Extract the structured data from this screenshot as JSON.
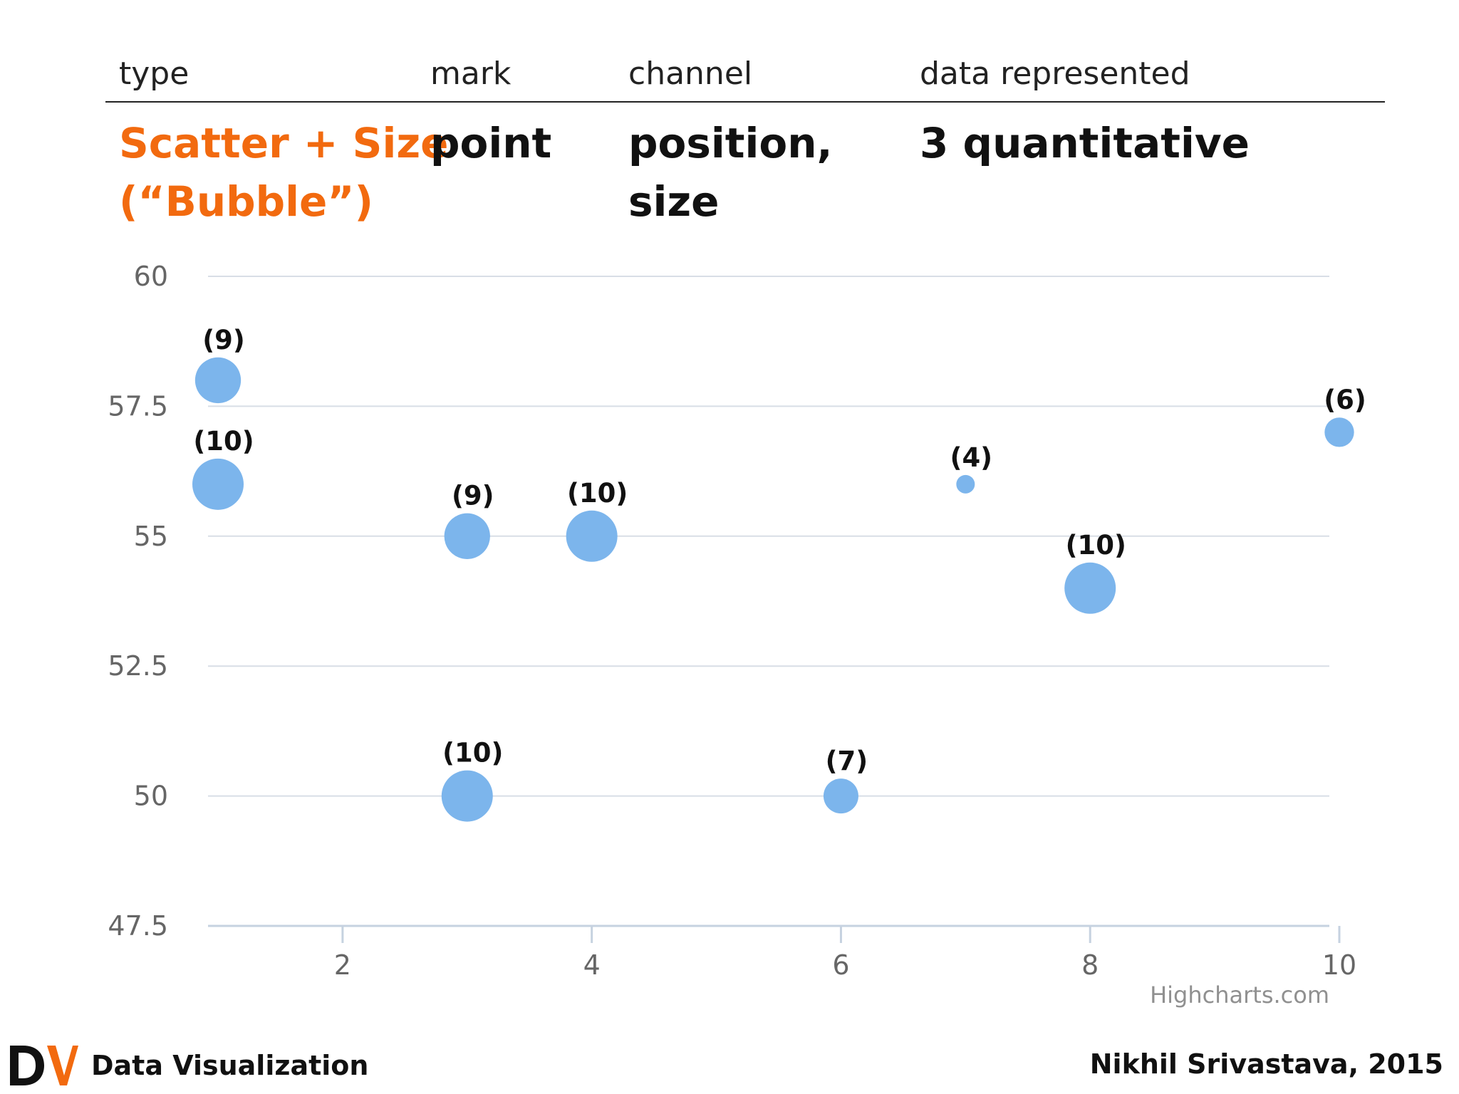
{
  "header": {
    "type_label": "type",
    "mark_label": "mark",
    "channel_label": "channel",
    "data_label": "data represented"
  },
  "row": {
    "type_line1": "Scatter + Size",
    "type_line2": "(“Bubble”)",
    "mark": "point",
    "channel_line1": "position,",
    "channel_line2": "size",
    "data": "3 quantitative"
  },
  "colors": {
    "accent": "#f26a0f",
    "bubble": "#7cb5ec",
    "grid": "#d8dee6",
    "axis_text": "#666666"
  },
  "chart_data": {
    "type": "scatter",
    "xlim": [
      1,
      10
    ],
    "ylim": [
      47.5,
      60
    ],
    "xticks": [
      2,
      4,
      6,
      8,
      10
    ],
    "yticks": [
      47.5,
      50,
      52.5,
      55,
      57.5,
      60
    ],
    "grid": true,
    "credit": "Highcharts.com",
    "series": [
      {
        "points": [
          {
            "x": 1,
            "y": 58,
            "z": 9,
            "label": "(9)"
          },
          {
            "x": 1,
            "y": 56,
            "z": 10,
            "label": "(10)"
          },
          {
            "x": 3,
            "y": 55,
            "z": 9,
            "label": "(9)"
          },
          {
            "x": 4,
            "y": 55,
            "z": 10,
            "label": "(10)"
          },
          {
            "x": 3,
            "y": 50,
            "z": 10,
            "label": "(10)"
          },
          {
            "x": 6,
            "y": 50,
            "z": 7,
            "label": "(7)"
          },
          {
            "x": 7,
            "y": 56,
            "z": 4,
            "label": "(4)"
          },
          {
            "x": 8,
            "y": 54,
            "z": 10,
            "label": "(10)"
          },
          {
            "x": 10,
            "y": 57,
            "z": 6,
            "label": "(6)"
          }
        ]
      }
    ]
  },
  "footer": {
    "logo_text": "DV",
    "title": "Data Visualization",
    "author": "Nikhil Srivastava, 2015"
  }
}
